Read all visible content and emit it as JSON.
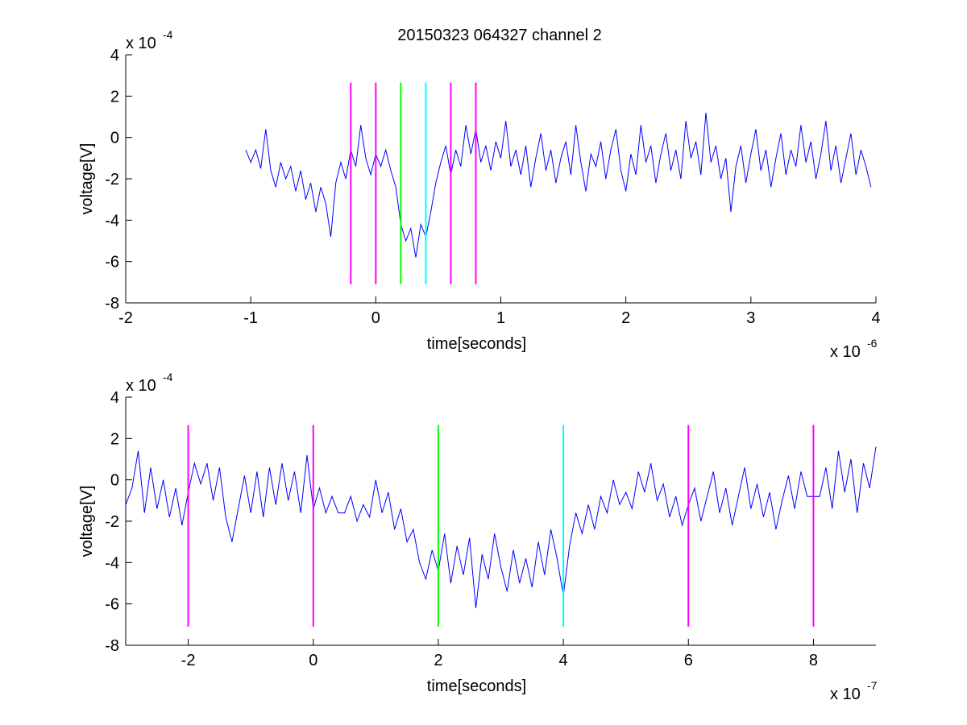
{
  "figure_title": "20150323 064327 channel 2",
  "chart_data": [
    {
      "type": "line",
      "title": "20150323 064327 channel 2",
      "xlabel": "time[seconds]",
      "ylabel": "voltage[V]",
      "x_multiplier_label": "x 10",
      "x_multiplier_exp": "-6",
      "y_multiplier_label": "x 10",
      "y_multiplier_exp": "-4",
      "xlim": [
        -2,
        4
      ],
      "ylim": [
        -8,
        4
      ],
      "xticks": [
        -2,
        -1,
        0,
        1,
        2,
        3,
        4
      ],
      "yticks": [
        -8,
        -6,
        -4,
        -2,
        0,
        2,
        4
      ],
      "xtick_labels": [
        "-2",
        "-1",
        "0",
        "1",
        "2",
        "3",
        "4"
      ],
      "ytick_labels": [
        "-8",
        "-6",
        "-4",
        "-2",
        "0",
        "2",
        "4"
      ],
      "grid": false,
      "series": [
        {
          "color": "#0000ff",
          "x_range": [
            -1.04,
            3.96
          ],
          "points": [
            [
              -1.04,
              -0.6
            ],
            [
              -1.0,
              -1.2
            ],
            [
              -0.96,
              -0.6
            ],
            [
              -0.92,
              -1.5
            ],
            [
              -0.88,
              0.4
            ],
            [
              -0.84,
              -1.6
            ],
            [
              -0.8,
              -2.4
            ],
            [
              -0.76,
              -1.2
            ],
            [
              -0.72,
              -2.0
            ],
            [
              -0.68,
              -1.4
            ],
            [
              -0.64,
              -2.6
            ],
            [
              -0.6,
              -1.6
            ],
            [
              -0.56,
              -3.0
            ],
            [
              -0.52,
              -2.2
            ],
            [
              -0.48,
              -3.6
            ],
            [
              -0.44,
              -2.4
            ],
            [
              -0.4,
              -3.2
            ],
            [
              -0.36,
              -4.8
            ],
            [
              -0.32,
              -2.2
            ],
            [
              -0.28,
              -1.2
            ],
            [
              -0.24,
              -2.0
            ],
            [
              -0.2,
              -0.6
            ],
            [
              -0.16,
              -1.4
            ],
            [
              -0.12,
              0.6
            ],
            [
              -0.08,
              -1.0
            ],
            [
              -0.04,
              -1.8
            ],
            [
              0.0,
              -0.8
            ],
            [
              0.04,
              -1.4
            ],
            [
              0.08,
              -0.6
            ],
            [
              0.12,
              -1.6
            ],
            [
              0.16,
              -2.4
            ],
            [
              0.2,
              -4.2
            ],
            [
              0.24,
              -5.0
            ],
            [
              0.28,
              -4.4
            ],
            [
              0.32,
              -5.8
            ],
            [
              0.36,
              -4.2
            ],
            [
              0.4,
              -4.8
            ],
            [
              0.44,
              -3.6
            ],
            [
              0.48,
              -2.2
            ],
            [
              0.52,
              -1.2
            ],
            [
              0.56,
              -0.4
            ],
            [
              0.6,
              -1.8
            ],
            [
              0.64,
              -0.6
            ],
            [
              0.68,
              -1.4
            ],
            [
              0.72,
              0.6
            ],
            [
              0.76,
              -0.8
            ],
            [
              0.8,
              0.4
            ],
            [
              0.84,
              -1.2
            ],
            [
              0.88,
              -0.4
            ],
            [
              0.92,
              -1.6
            ],
            [
              0.96,
              -0.2
            ],
            [
              1.0,
              -1.0
            ],
            [
              1.04,
              0.8
            ],
            [
              1.08,
              -1.4
            ],
            [
              1.12,
              -0.6
            ],
            [
              1.16,
              -1.8
            ],
            [
              1.2,
              -0.4
            ],
            [
              1.24,
              -2.4
            ],
            [
              1.28,
              -1.0
            ],
            [
              1.32,
              0.2
            ],
            [
              1.36,
              -1.6
            ],
            [
              1.4,
              -0.6
            ],
            [
              1.44,
              -2.2
            ],
            [
              1.48,
              -1.0
            ],
            [
              1.52,
              -0.2
            ],
            [
              1.56,
              -1.8
            ],
            [
              1.6,
              0.6
            ],
            [
              1.64,
              -1.2
            ],
            [
              1.68,
              -2.6
            ],
            [
              1.72,
              -0.8
            ],
            [
              1.76,
              -1.4
            ],
            [
              1.8,
              -0.2
            ],
            [
              1.84,
              -2.0
            ],
            [
              1.88,
              -0.6
            ],
            [
              1.92,
              0.4
            ],
            [
              1.96,
              -1.6
            ],
            [
              2.0,
              -2.6
            ],
            [
              2.04,
              -0.8
            ],
            [
              2.08,
              -1.8
            ],
            [
              2.12,
              0.6
            ],
            [
              2.16,
              -1.2
            ],
            [
              2.2,
              -0.4
            ],
            [
              2.24,
              -2.2
            ],
            [
              2.28,
              -0.8
            ],
            [
              2.32,
              0.2
            ],
            [
              2.36,
              -1.6
            ],
            [
              2.4,
              -0.6
            ],
            [
              2.44,
              -2.0
            ],
            [
              2.48,
              0.8
            ],
            [
              2.52,
              -1.0
            ],
            [
              2.56,
              -0.2
            ],
            [
              2.6,
              -1.8
            ],
            [
              2.64,
              1.2
            ],
            [
              2.68,
              -1.2
            ],
            [
              2.72,
              -0.4
            ],
            [
              2.76,
              -2.0
            ],
            [
              2.8,
              -1.0
            ],
            [
              2.84,
              -3.6
            ],
            [
              2.88,
              -1.4
            ],
            [
              2.92,
              -0.4
            ],
            [
              2.96,
              -2.2
            ],
            [
              3.0,
              -0.8
            ],
            [
              3.04,
              0.4
            ],
            [
              3.08,
              -1.6
            ],
            [
              3.12,
              -0.6
            ],
            [
              3.16,
              -2.4
            ],
            [
              3.2,
              -1.0
            ],
            [
              3.24,
              0.2
            ],
            [
              3.28,
              -1.8
            ],
            [
              3.32,
              -0.6
            ],
            [
              3.36,
              -1.4
            ],
            [
              3.4,
              0.6
            ],
            [
              3.44,
              -1.2
            ],
            [
              3.48,
              -0.2
            ],
            [
              3.52,
              -2.0
            ],
            [
              3.56,
              -0.8
            ],
            [
              3.6,
              0.8
            ],
            [
              3.64,
              -1.6
            ],
            [
              3.68,
              -0.4
            ],
            [
              3.72,
              -2.2
            ],
            [
              3.76,
              -1.0
            ],
            [
              3.8,
              0.2
            ],
            [
              3.84,
              -1.8
            ],
            [
              3.88,
              -0.6
            ],
            [
              3.92,
              -1.4
            ],
            [
              3.96,
              -2.4
            ]
          ]
        }
      ],
      "markers": [
        {
          "x": -0.2,
          "color": "#ff00ff"
        },
        {
          "x": 0.0,
          "color": "#ff00ff"
        },
        {
          "x": 0.2,
          "color": "#00ff00"
        },
        {
          "x": 0.4,
          "color": "#00ffff"
        },
        {
          "x": 0.6,
          "color": "#ff00ff"
        },
        {
          "x": 0.8,
          "color": "#ff00ff"
        }
      ],
      "marker_ylim": [
        -7.1,
        2.65
      ]
    },
    {
      "type": "line",
      "title": "",
      "xlabel": "time[seconds]",
      "ylabel": "voltage[V]",
      "x_multiplier_label": "x 10",
      "x_multiplier_exp": "-7",
      "y_multiplier_label": "x 10",
      "y_multiplier_exp": "-4",
      "xlim": [
        -3,
        9
      ],
      "ylim": [
        -8,
        4
      ],
      "xticks": [
        -2,
        0,
        2,
        4,
        6,
        8
      ],
      "yticks": [
        -8,
        -6,
        -4,
        -2,
        0,
        2,
        4
      ],
      "xtick_labels": [
        "-2",
        "0",
        "2",
        "4",
        "6",
        "8"
      ],
      "ytick_labels": [
        "-8",
        "-6",
        "-4",
        "-2",
        "0",
        "2",
        "4"
      ],
      "grid": false,
      "series": [
        {
          "color": "#0000ff",
          "x_range": [
            -3,
            9
          ],
          "points": [
            [
              -3.0,
              -1.2
            ],
            [
              -2.9,
              -0.4
            ],
            [
              -2.8,
              1.4
            ],
            [
              -2.7,
              -1.6
            ],
            [
              -2.6,
              0.6
            ],
            [
              -2.5,
              -1.4
            ],
            [
              -2.4,
              0.0
            ],
            [
              -2.3,
              -1.8
            ],
            [
              -2.2,
              -0.4
            ],
            [
              -2.1,
              -2.2
            ],
            [
              -2.0,
              -0.6
            ],
            [
              -1.9,
              0.8
            ],
            [
              -1.8,
              -0.2
            ],
            [
              -1.7,
              0.8
            ],
            [
              -1.6,
              -1.0
            ],
            [
              -1.5,
              0.6
            ],
            [
              -1.4,
              -1.8
            ],
            [
              -1.3,
              -3.0
            ],
            [
              -1.2,
              -1.4
            ],
            [
              -1.1,
              0.2
            ],
            [
              -1.0,
              -1.6
            ],
            [
              -0.9,
              0.4
            ],
            [
              -0.8,
              -1.8
            ],
            [
              -0.7,
              0.6
            ],
            [
              -0.6,
              -1.2
            ],
            [
              -0.5,
              0.8
            ],
            [
              -0.4,
              -1.0
            ],
            [
              -0.3,
              0.4
            ],
            [
              -0.2,
              -1.6
            ],
            [
              -0.1,
              1.2
            ],
            [
              0.0,
              -1.4
            ],
            [
              0.1,
              -0.4
            ],
            [
              0.2,
              -1.6
            ],
            [
              0.3,
              -0.8
            ],
            [
              0.4,
              -1.6
            ],
            [
              0.5,
              -1.6
            ],
            [
              0.6,
              -0.8
            ],
            [
              0.7,
              -2.0
            ],
            [
              0.8,
              -1.2
            ],
            [
              0.9,
              -1.8
            ],
            [
              1.0,
              0.0
            ],
            [
              1.1,
              -1.6
            ],
            [
              1.2,
              -0.6
            ],
            [
              1.3,
              -2.4
            ],
            [
              1.4,
              -1.4
            ],
            [
              1.5,
              -3.0
            ],
            [
              1.6,
              -2.4
            ],
            [
              1.7,
              -4.0
            ],
            [
              1.8,
              -4.8
            ],
            [
              1.9,
              -3.4
            ],
            [
              2.0,
              -4.4
            ],
            [
              2.1,
              -2.6
            ],
            [
              2.2,
              -5.0
            ],
            [
              2.3,
              -3.2
            ],
            [
              2.4,
              -4.6
            ],
            [
              2.5,
              -2.8
            ],
            [
              2.6,
              -6.2
            ],
            [
              2.7,
              -3.6
            ],
            [
              2.8,
              -4.8
            ],
            [
              2.9,
              -2.6
            ],
            [
              3.0,
              -4.2
            ],
            [
              3.1,
              -5.4
            ],
            [
              3.2,
              -3.4
            ],
            [
              3.3,
              -5.0
            ],
            [
              3.4,
              -3.8
            ],
            [
              3.5,
              -5.2
            ],
            [
              3.6,
              -3.0
            ],
            [
              3.7,
              -4.6
            ],
            [
              3.8,
              -2.4
            ],
            [
              3.9,
              -3.8
            ],
            [
              4.0,
              -5.6
            ],
            [
              4.1,
              -3.2
            ],
            [
              4.2,
              -1.6
            ],
            [
              4.3,
              -2.6
            ],
            [
              4.4,
              -1.2
            ],
            [
              4.5,
              -2.4
            ],
            [
              4.6,
              -0.8
            ],
            [
              4.7,
              -1.6
            ],
            [
              4.8,
              0.0
            ],
            [
              4.9,
              -1.2
            ],
            [
              5.0,
              -0.6
            ],
            [
              5.1,
              -1.4
            ],
            [
              5.2,
              0.4
            ],
            [
              5.3,
              -0.6
            ],
            [
              5.4,
              0.8
            ],
            [
              5.5,
              -1.0
            ],
            [
              5.6,
              -0.2
            ],
            [
              5.7,
              -1.8
            ],
            [
              5.8,
              -0.8
            ],
            [
              5.9,
              -2.2
            ],
            [
              6.0,
              -1.2
            ],
            [
              6.1,
              -0.4
            ],
            [
              6.2,
              -2.0
            ],
            [
              6.3,
              -0.8
            ],
            [
              6.4,
              0.4
            ],
            [
              6.5,
              -1.6
            ],
            [
              6.6,
              -0.4
            ],
            [
              6.7,
              -2.2
            ],
            [
              6.8,
              -0.8
            ],
            [
              6.9,
              0.6
            ],
            [
              7.0,
              -1.4
            ],
            [
              7.1,
              -0.2
            ],
            [
              7.2,
              -1.8
            ],
            [
              7.3,
              -0.6
            ],
            [
              7.4,
              -2.4
            ],
            [
              7.5,
              -1.0
            ],
            [
              7.6,
              0.2
            ],
            [
              7.7,
              -1.4
            ],
            [
              7.8,
              0.4
            ],
            [
              7.9,
              -0.8
            ],
            [
              8.0,
              -0.8
            ],
            [
              8.1,
              -0.8
            ],
            [
              8.2,
              0.6
            ],
            [
              8.3,
              -1.4
            ],
            [
              8.4,
              1.4
            ],
            [
              8.5,
              -0.6
            ],
            [
              8.6,
              1.0
            ],
            [
              8.7,
              -1.6
            ],
            [
              8.8,
              0.8
            ],
            [
              8.9,
              -0.4
            ],
            [
              9.0,
              1.6
            ]
          ]
        }
      ],
      "markers": [
        {
          "x": -2,
          "color": "#ff00ff"
        },
        {
          "x": 0,
          "color": "#ff00ff"
        },
        {
          "x": 2,
          "color": "#00ff00"
        },
        {
          "x": 4,
          "color": "#00ffff"
        },
        {
          "x": 6,
          "color": "#ff00ff"
        },
        {
          "x": 8,
          "color": "#ff00ff"
        }
      ],
      "marker_ylim": [
        -7.1,
        2.65
      ]
    }
  ]
}
